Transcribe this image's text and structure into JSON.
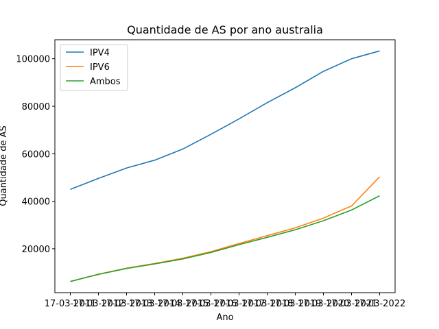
{
  "chart_data": {
    "type": "line",
    "title": "Quantidade de AS por ano australia",
    "xlabel": "Ano",
    "ylabel": "Quantidade de AS",
    "categories": [
      "17-03-2011",
      "17-03-2012",
      "17-03-2013",
      "17-03-2014",
      "17-03-2015",
      "17-03-2016",
      "17-03-2017",
      "17-03-2018",
      "17-03-2019",
      "17-03-2020",
      "17-03-2021",
      "17-03-2022"
    ],
    "yticks": [
      20000,
      40000,
      60000,
      80000,
      100000
    ],
    "ylim": [
      1500,
      108000
    ],
    "legend_position": "upper left",
    "grid": false,
    "series": [
      {
        "name": "IPV4",
        "color": "#1f77b4",
        "values": [
          45000,
          49600,
          54000,
          57300,
          62000,
          68200,
          74700,
          81500,
          87800,
          94700,
          100000,
          103300
        ]
      },
      {
        "name": "IPV6",
        "color": "#ff7f0e",
        "values": [
          6200,
          9300,
          11800,
          13800,
          16000,
          18800,
          22200,
          25500,
          28800,
          32900,
          38000,
          50300
        ]
      },
      {
        "name": "Ambos",
        "color": "#2ca02c",
        "values": [
          6200,
          9200,
          11700,
          13600,
          15700,
          18400,
          21700,
          24800,
          28000,
          31800,
          36300,
          42300
        ]
      }
    ]
  }
}
